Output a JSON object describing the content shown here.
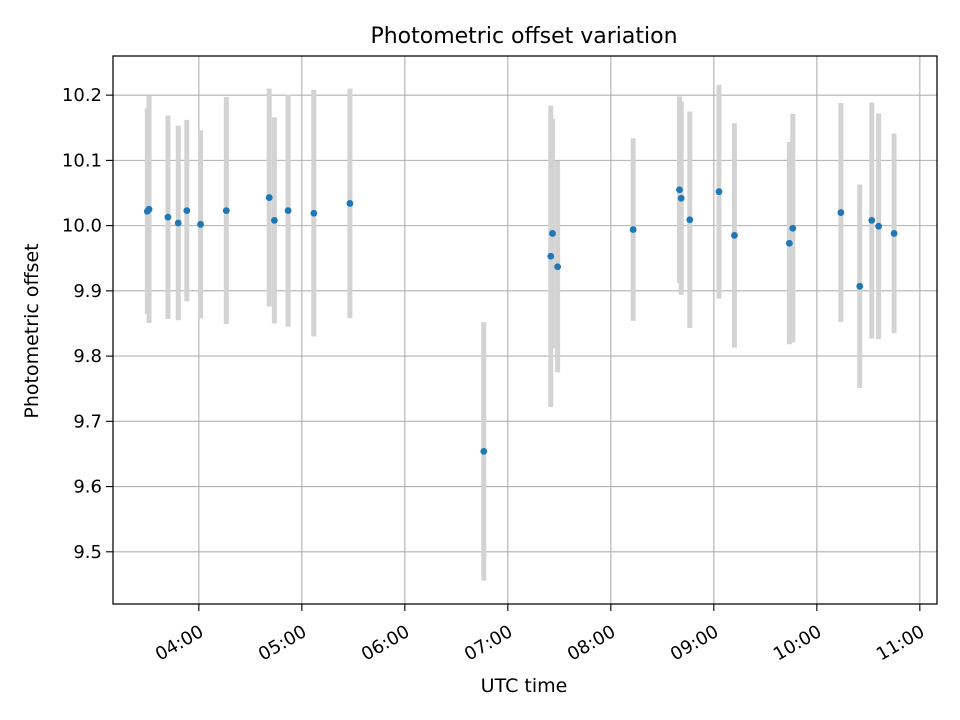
{
  "chart_data": {
    "type": "scatter",
    "title": "Photometric offset variation",
    "xlabel": "UTC time",
    "ylabel": "Photometric offset",
    "grid": true,
    "x_unit": "UTC time (HH:MM)",
    "xlim": [
      "03:10",
      "11:10"
    ],
    "ylim": [
      9.42,
      10.26
    ],
    "x_ticks": [
      "04:00",
      "05:00",
      "06:00",
      "07:00",
      "08:00",
      "09:00",
      "10:00",
      "11:00"
    ],
    "y_ticks": [
      "9.5",
      "9.6",
      "9.7",
      "9.8",
      "9.9",
      "10.0",
      "10.1",
      "10.2"
    ],
    "point_color": "#1f77b4",
    "errorbar_color": "#d3d3d3",
    "points": [
      {
        "x": "03:30",
        "y": 10.022,
        "low": 9.865,
        "high": 10.18
      },
      {
        "x": "03:31",
        "y": 10.025,
        "low": 9.851,
        "high": 10.199
      },
      {
        "x": "03:42",
        "y": 10.013,
        "low": 9.857,
        "high": 10.169
      },
      {
        "x": "03:48",
        "y": 10.004,
        "low": 9.855,
        "high": 10.153
      },
      {
        "x": "03:53",
        "y": 10.023,
        "low": 9.884,
        "high": 10.162
      },
      {
        "x": "04:01",
        "y": 10.002,
        "low": 9.858,
        "high": 10.146
      },
      {
        "x": "04:16",
        "y": 10.023,
        "low": 9.849,
        "high": 10.197
      },
      {
        "x": "04:41",
        "y": 10.043,
        "low": 9.876,
        "high": 10.21
      },
      {
        "x": "04:44",
        "y": 10.008,
        "low": 9.85,
        "high": 10.166
      },
      {
        "x": "04:52",
        "y": 10.023,
        "low": 9.845,
        "high": 10.201
      },
      {
        "x": "05:07",
        "y": 10.019,
        "low": 9.83,
        "high": 10.208
      },
      {
        "x": "05:28",
        "y": 10.034,
        "low": 9.858,
        "high": 10.21
      },
      {
        "x": "06:46",
        "y": 9.654,
        "low": 9.456,
        "high": 9.852
      },
      {
        "x": "07:25",
        "y": 9.953,
        "low": 9.722,
        "high": 10.184
      },
      {
        "x": "07:26",
        "y": 9.988,
        "low": 9.812,
        "high": 10.164
      },
      {
        "x": "07:29",
        "y": 9.937,
        "low": 9.775,
        "high": 10.099
      },
      {
        "x": "08:13",
        "y": 9.994,
        "low": 9.854,
        "high": 10.134
      },
      {
        "x": "08:40",
        "y": 10.055,
        "low": 9.912,
        "high": 10.198
      },
      {
        "x": "08:41",
        "y": 10.042,
        "low": 9.894,
        "high": 10.19
      },
      {
        "x": "08:46",
        "y": 10.009,
        "low": 9.843,
        "high": 10.175
      },
      {
        "x": "09:03",
        "y": 10.052,
        "low": 9.888,
        "high": 10.216
      },
      {
        "x": "09:12",
        "y": 9.985,
        "low": 9.813,
        "high": 10.157
      },
      {
        "x": "09:44",
        "y": 9.973,
        "low": 9.818,
        "high": 10.128
      },
      {
        "x": "09:46",
        "y": 9.996,
        "low": 9.821,
        "high": 10.171
      },
      {
        "x": "10:14",
        "y": 10.02,
        "low": 9.852,
        "high": 10.188
      },
      {
        "x": "10:25",
        "y": 9.907,
        "low": 9.751,
        "high": 10.063
      },
      {
        "x": "10:32",
        "y": 10.008,
        "low": 9.827,
        "high": 10.189
      },
      {
        "x": "10:36",
        "y": 9.999,
        "low": 9.826,
        "high": 10.172
      },
      {
        "x": "10:45",
        "y": 9.988,
        "low": 9.835,
        "high": 10.141
      }
    ]
  }
}
